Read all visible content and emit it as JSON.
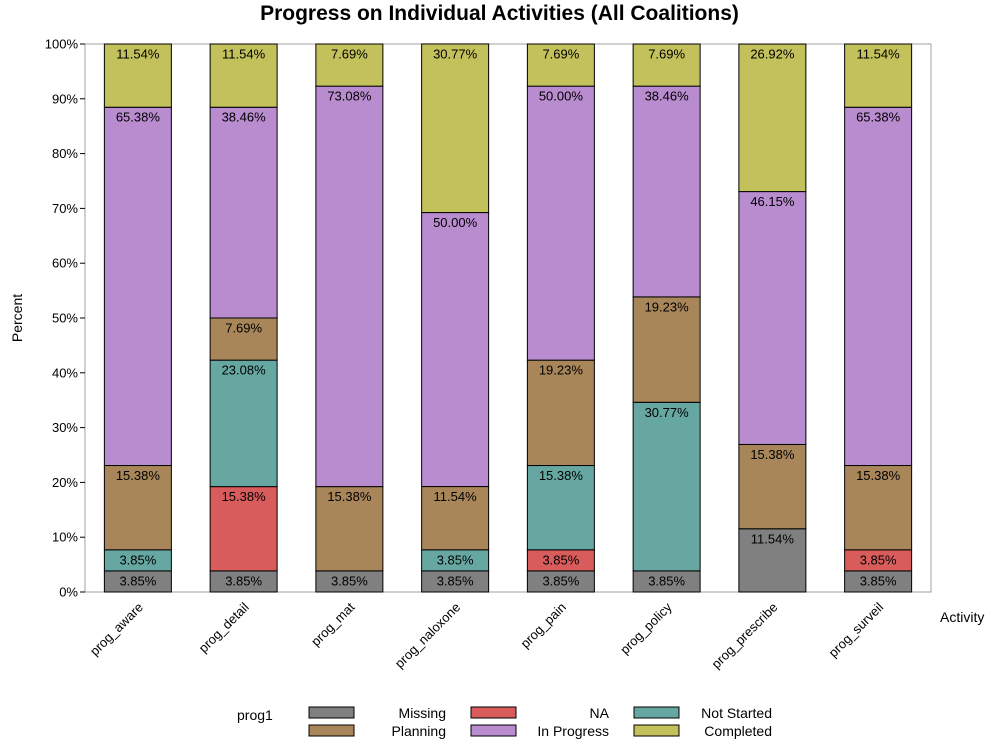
{
  "chart_data": {
    "type": "stacked_bar_percent",
    "title": "Progress on Individual Activities (All Coalitions)",
    "xlabel": "Activity",
    "ylabel": "Percent",
    "ylim": [
      0,
      100
    ],
    "yticks": [
      "0%",
      "10%",
      "20%",
      "30%",
      "40%",
      "50%",
      "60%",
      "70%",
      "80%",
      "90%",
      "100%"
    ],
    "categories": [
      "prog_aware",
      "prog_detail",
      "prog_mat",
      "prog_naloxone",
      "prog_pain",
      "prog_policy",
      "prog_prescribe",
      "prog_surveil"
    ],
    "series": [
      {
        "name": "Missing",
        "color": "#808080",
        "values": [
          3.85,
          3.85,
          3.85,
          3.85,
          3.85,
          3.85,
          11.54,
          3.85
        ]
      },
      {
        "name": "NA",
        "color": "#d85c5c",
        "values": [
          0,
          15.38,
          0,
          0,
          3.85,
          0,
          0,
          3.85
        ]
      },
      {
        "name": "Not Started",
        "color": "#66a8a1",
        "values": [
          3.85,
          23.08,
          0,
          3.85,
          15.38,
          30.77,
          0,
          0
        ]
      },
      {
        "name": "Planning",
        "color": "#a8865a",
        "values": [
          15.38,
          7.69,
          15.38,
          11.54,
          19.23,
          19.23,
          15.38,
          15.38
        ]
      },
      {
        "name": "In Progress",
        "color": "#b98bcf",
        "values": [
          65.38,
          38.46,
          73.08,
          50.0,
          50.0,
          38.46,
          46.15,
          65.38
        ]
      },
      {
        "name": "Completed",
        "color": "#c2c15c",
        "values": [
          11.54,
          11.54,
          7.69,
          30.77,
          7.69,
          7.69,
          26.92,
          11.54
        ]
      }
    ],
    "legend": {
      "title": "prog1",
      "position": "bottom"
    }
  }
}
